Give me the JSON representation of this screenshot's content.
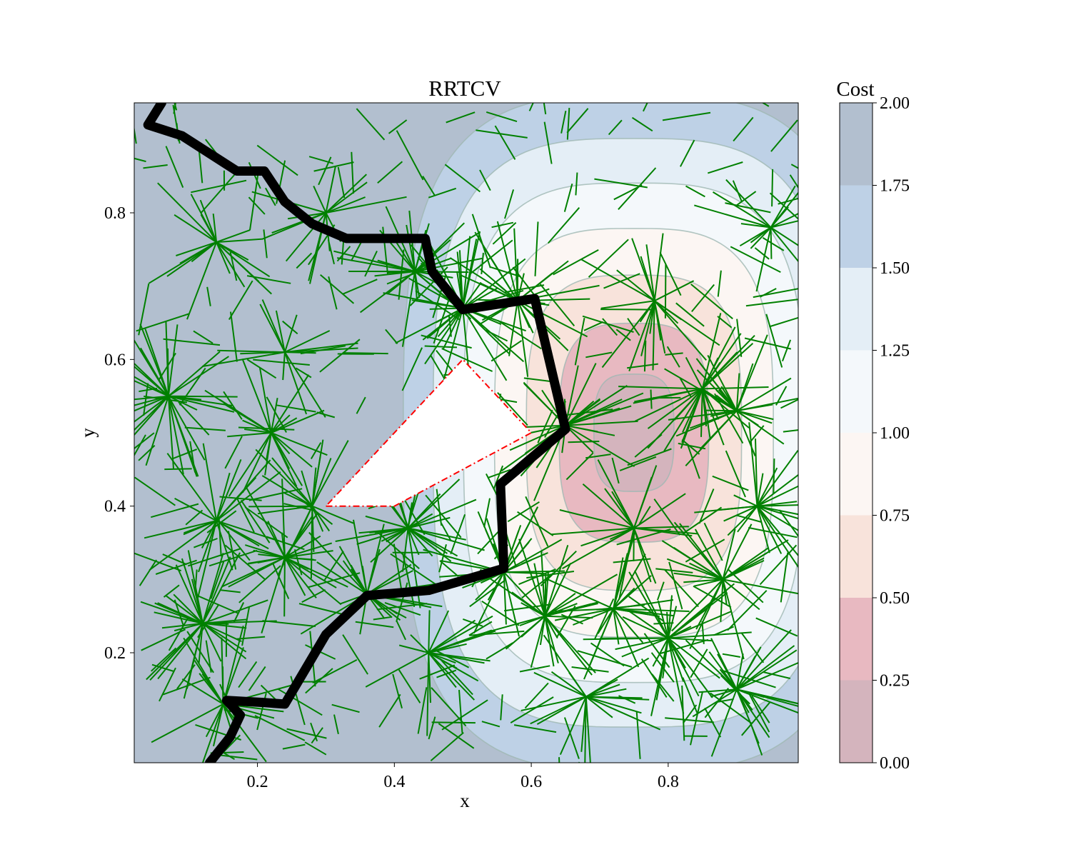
{
  "chart_data": {
    "type": "contour",
    "title": "RRTCV",
    "xlabel": "x",
    "ylabel": "y",
    "xlim": [
      0.02,
      0.99
    ],
    "ylim": [
      0.05,
      0.95
    ],
    "xticks": [
      {
        "value": 0.2,
        "label": "0.2"
      },
      {
        "value": 0.4,
        "label": "0.4"
      },
      {
        "value": 0.6,
        "label": "0.6"
      },
      {
        "value": 0.8,
        "label": "0.8"
      }
    ],
    "yticks": [
      {
        "value": 0.2,
        "label": "0.2"
      },
      {
        "value": 0.4,
        "label": "0.4"
      },
      {
        "value": 0.6,
        "label": "0.6"
      },
      {
        "value": 0.8,
        "label": "0.8"
      }
    ],
    "colorbar": {
      "title": "Cost",
      "range": [
        0,
        2
      ],
      "levels": [
        0.0,
        0.25,
        0.5,
        0.75,
        1.0,
        1.25,
        1.5,
        1.75,
        2.0
      ],
      "tick_labels": [
        "0.00",
        "0.25",
        "0.50",
        "0.75",
        "1.00",
        "1.25",
        "1.50",
        "1.75",
        "2.00"
      ],
      "band_colors": [
        "#d4b4bd",
        "#e8b9c1",
        "#f8e3db",
        "#fcf6f3",
        "#f4f8fb",
        "#e4eef6",
        "#bed1e6",
        "#b2bfcf"
      ]
    },
    "cost_field": {
      "minimum_center": [
        0.75,
        0.5
      ],
      "description": "cost lowest near x=0.75, y=0.5, increasing toward the plot edges"
    },
    "obstacle": {
      "style": "red dash-dot outline, white fill",
      "color": "#ff0000",
      "vertices": [
        [
          0.3,
          0.4
        ],
        [
          0.4,
          0.4
        ],
        [
          0.6,
          0.5
        ],
        [
          0.5,
          0.6
        ],
        [
          0.3,
          0.4
        ]
      ]
    },
    "path": {
      "color": "#000000",
      "points": [
        [
          0.13,
          0.05
        ],
        [
          0.16,
          0.085
        ],
        [
          0.175,
          0.115
        ],
        [
          0.155,
          0.135
        ],
        [
          0.21,
          0.132
        ],
        [
          0.24,
          0.13
        ],
        [
          0.3,
          0.225
        ],
        [
          0.36,
          0.278
        ],
        [
          0.45,
          0.285
        ],
        [
          0.56,
          0.315
        ],
        [
          0.555,
          0.43
        ],
        [
          0.65,
          0.505
        ],
        [
          0.605,
          0.683
        ],
        [
          0.5,
          0.668
        ],
        [
          0.455,
          0.72
        ],
        [
          0.445,
          0.765
        ],
        [
          0.33,
          0.765
        ],
        [
          0.28,
          0.785
        ],
        [
          0.24,
          0.815
        ],
        [
          0.21,
          0.857
        ],
        [
          0.17,
          0.857
        ],
        [
          0.09,
          0.905
        ],
        [
          0.04,
          0.92
        ],
        [
          0.06,
          0.95
        ]
      ]
    },
    "tree": {
      "color": "#008000",
      "hubs": [
        [
          0.85,
          0.56
        ],
        [
          0.75,
          0.37
        ],
        [
          0.56,
          0.31
        ],
        [
          0.78,
          0.68
        ],
        [
          0.65,
          0.51
        ],
        [
          0.28,
          0.4
        ],
        [
          0.24,
          0.61
        ],
        [
          0.36,
          0.28
        ],
        [
          0.42,
          0.37
        ],
        [
          0.62,
          0.25
        ],
        [
          0.72,
          0.26
        ],
        [
          0.8,
          0.22
        ],
        [
          0.5,
          0.67
        ],
        [
          0.43,
          0.72
        ],
        [
          0.22,
          0.5
        ],
        [
          0.24,
          0.33
        ],
        [
          0.15,
          0.13
        ],
        [
          0.58,
          0.68
        ],
        [
          0.9,
          0.53
        ],
        [
          0.88,
          0.3
        ],
        [
          0.95,
          0.78
        ],
        [
          0.3,
          0.8
        ],
        [
          0.14,
          0.38
        ],
        [
          0.45,
          0.2
        ],
        [
          0.68,
          0.14
        ],
        [
          0.9,
          0.15
        ],
        [
          0.93,
          0.4
        ],
        [
          0.14,
          0.76
        ],
        [
          0.07,
          0.55
        ],
        [
          0.12,
          0.24
        ]
      ]
    }
  }
}
